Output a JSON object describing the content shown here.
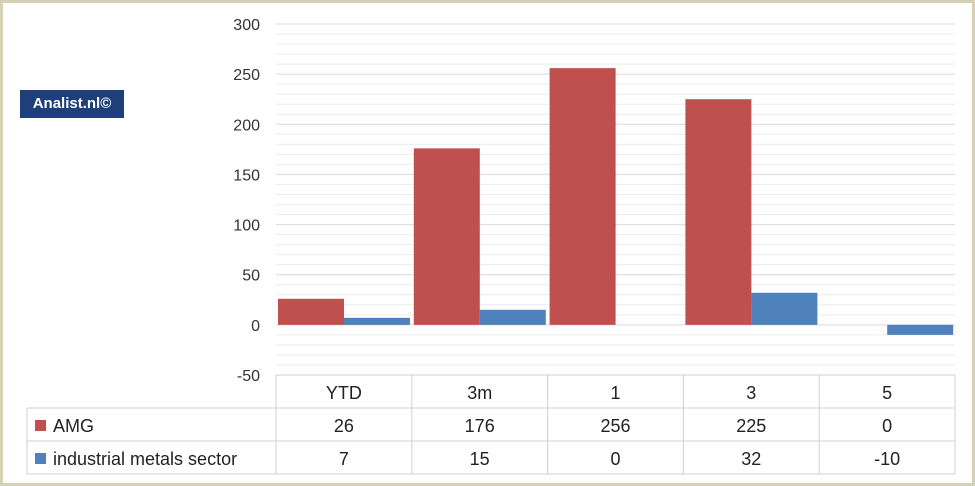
{
  "watermark": "Analist.nl©",
  "chart_data": {
    "type": "bar",
    "title": "",
    "categories": [
      "YTD",
      "3m",
      "1",
      "3",
      "5"
    ],
    "series": [
      {
        "name": "AMG",
        "color": "#c0504d",
        "values": [
          26,
          176,
          256,
          225,
          0
        ]
      },
      {
        "name": "industrial metals sector",
        "color": "#4f81bd",
        "values": [
          7,
          15,
          0,
          32,
          -10
        ]
      }
    ],
    "ylim": [
      -50,
      300
    ],
    "yticks": [
      -50,
      0,
      50,
      100,
      150,
      200,
      250,
      300
    ],
    "ytick_labels": [
      "-50",
      "0",
      "50",
      "100",
      "150",
      "200",
      "250",
      "300"
    ],
    "grid": true,
    "data_table": true,
    "table_values": [
      [
        "26",
        "176",
        "256",
        "225",
        "0"
      ],
      [
        "7",
        "15",
        "0",
        "32",
        "-10"
      ]
    ]
  }
}
